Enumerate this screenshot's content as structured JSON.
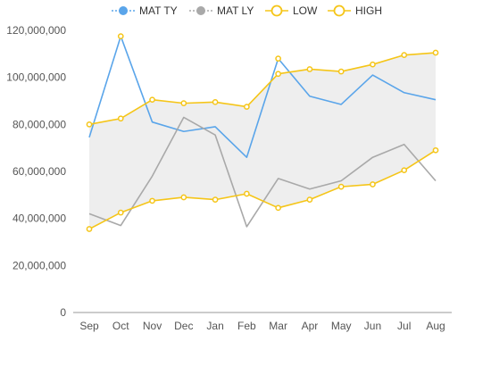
{
  "chart_data": {
    "type": "line",
    "categories": [
      "Sep",
      "Oct",
      "Nov",
      "Dec",
      "Jan",
      "Feb",
      "Mar",
      "Apr",
      "May",
      "Jun",
      "Jul",
      "Aug"
    ],
    "ylim": [
      0,
      120000000
    ],
    "yticks": [
      0,
      20000000,
      40000000,
      60000000,
      80000000,
      100000000,
      120000000
    ],
    "ytick_labels": [
      "0",
      "20,000,000",
      "40,000,000",
      "60,000,000",
      "80,000,000",
      "100,000,000",
      "120,000,000"
    ],
    "legend_position": "top",
    "band": {
      "lower_series": "LOW",
      "upper_series": "HIGH",
      "color": "#eeeeee"
    },
    "series": [
      {
        "name": "MAT TY",
        "color": "#5aa5ea",
        "style": "line",
        "marker_points": [
          1,
          6
        ],
        "values": [
          74500000,
          117500000,
          81000000,
          77000000,
          79000000,
          66000000,
          108000000,
          92000000,
          88500000,
          101000000,
          93500000,
          90500000
        ]
      },
      {
        "name": "MAT LY",
        "color": "#a9a9a9",
        "style": "line",
        "marker_points": [],
        "values": [
          42000000,
          37000000,
          58000000,
          83000000,
          75500000,
          36500000,
          57000000,
          52500000,
          56000000,
          66000000,
          71500000,
          56000000
        ]
      },
      {
        "name": "LOW",
        "color": "#f5c518",
        "style": "line-markers",
        "values": [
          35500000,
          42500000,
          47500000,
          49000000,
          48000000,
          50500000,
          44500000,
          48000000,
          53500000,
          54500000,
          60500000,
          69000000
        ]
      },
      {
        "name": "HIGH",
        "color": "#f5c518",
        "style": "line-markers",
        "values": [
          80000000,
          82500000,
          90500000,
          89000000,
          89500000,
          87500000,
          101500000,
          103500000,
          102500000,
          105500000,
          109500000,
          110500000
        ]
      }
    ]
  }
}
